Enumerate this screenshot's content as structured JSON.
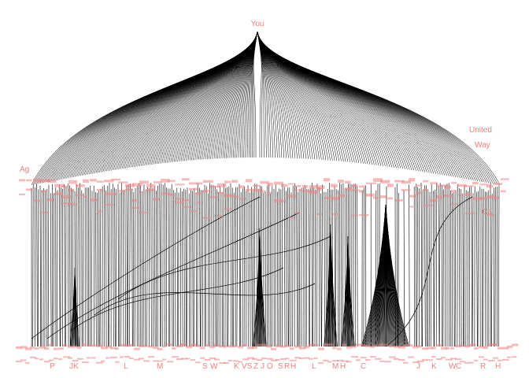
{
  "root": {
    "label": "You"
  },
  "labels": {
    "mid_left": [
      "Ag"
    ],
    "mid_right": [
      "United",
      "Way",
      "Ca"
    ],
    "bottom_initials": [
      "P",
      "JK",
      "L",
      "M",
      "S",
      "W",
      "K",
      "VS",
      "Z",
      "J",
      "O",
      "S",
      "R",
      "H",
      "L",
      "M",
      "H",
      "C",
      "J",
      "K",
      "W",
      "C",
      "R",
      "H"
    ]
  },
  "colors": {
    "edge": "#000000",
    "label": "#f08080",
    "background": "#ffffff"
  }
}
